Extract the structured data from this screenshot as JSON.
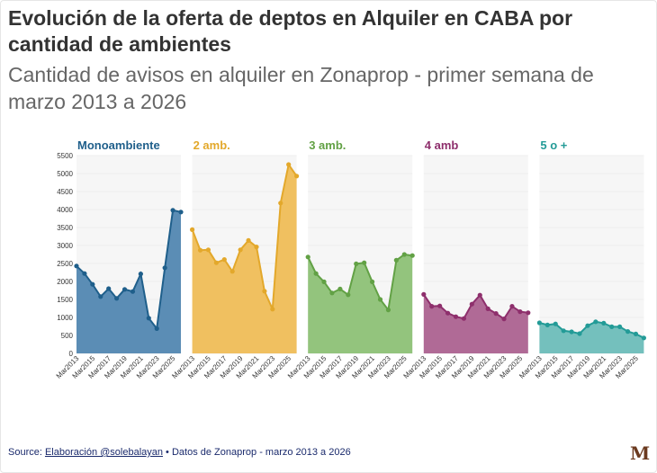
{
  "title": "Evolución de la oferta de deptos en Alquiler en CABA por cantidad de ambientes",
  "subtitle": "Cantidad de avisos en alquiler en Zonaprop - primer semana de marzo 2013 a 2026",
  "footer": {
    "prefix": "Source: ",
    "link": "Elaboración @solebalayan",
    "suffix": " • Datos de Zonaprop - marzo 2013 a 2026"
  },
  "logo": "M",
  "chart_data": {
    "type": "area",
    "layout": "small-multiples",
    "x": [
      "Mar2013",
      "Mar2014",
      "Mar2015",
      "Mar2016",
      "Mar2017",
      "Mar2018",
      "Mar2019",
      "Mar2020",
      "Mar2021",
      "Mar2022",
      "Mar2023",
      "Mar2024",
      "Mar2025",
      "Mar2026"
    ],
    "xtick_labels": [
      "Mar2013",
      "Mar2015",
      "Mar2017",
      "Mar2019",
      "Mar2021",
      "Mar2023",
      "Mar2025"
    ],
    "yticks": [
      0,
      500,
      1000,
      1500,
      2000,
      2500,
      3000,
      3500,
      4000,
      4500,
      5000,
      5500
    ],
    "ylim": [
      0,
      5500
    ],
    "grid": true,
    "series": [
      {
        "name": "Monoambiente",
        "line": "#1f5f8b",
        "fill": "#5b8db5",
        "values": [
          2430,
          2220,
          1920,
          1580,
          1800,
          1530,
          1780,
          1720,
          2210,
          980,
          690,
          2380,
          3980,
          3930
        ]
      },
      {
        "name": "2 amb.",
        "line": "#e3a82b",
        "fill": "#f0c060",
        "values": [
          3440,
          2870,
          2880,
          2520,
          2610,
          2280,
          2880,
          3140,
          2960,
          1730,
          1230,
          4180,
          5250,
          4930
        ]
      },
      {
        "name": "3 amb.",
        "line": "#62a145",
        "fill": "#93c47d",
        "values": [
          2680,
          2220,
          1990,
          1680,
          1790,
          1630,
          2490,
          2520,
          1990,
          1500,
          1210,
          2590,
          2750,
          2720
        ]
      },
      {
        "name": "4 amb",
        "line": "#8e2f6c",
        "fill": "#b06a96",
        "values": [
          1640,
          1310,
          1320,
          1120,
          1020,
          970,
          1370,
          1620,
          1240,
          1110,
          960,
          1310,
          1160,
          1130
        ]
      },
      {
        "name": "5 o +",
        "line": "#239b97",
        "fill": "#74c0bd",
        "values": [
          850,
          790,
          820,
          630,
          600,
          550,
          770,
          880,
          840,
          740,
          740,
          610,
          540,
          430
        ]
      }
    ]
  }
}
